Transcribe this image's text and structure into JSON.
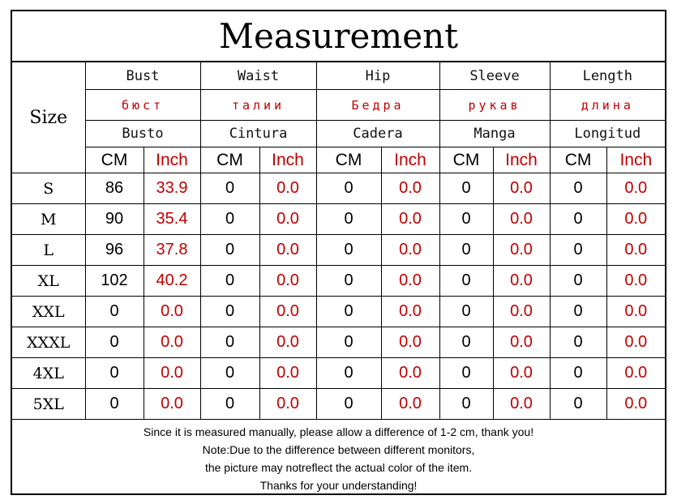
{
  "title": "Measurement",
  "size_header": "Size",
  "columns": [
    {
      "en": "Bust",
      "ru": "бюст",
      "es": "Busto"
    },
    {
      "en": "Waist",
      "ru": "талии",
      "es": "Cintura"
    },
    {
      "en": "Hip",
      "ru": "Бедра",
      "es": "Cadera"
    },
    {
      "en": "Sleeve",
      "ru": "рукав",
      "es": "Manga"
    },
    {
      "en": "Length",
      "ru": "длина",
      "es": "Longitud"
    }
  ],
  "units": {
    "cm": "CM",
    "inch": "Inch"
  },
  "rows": [
    {
      "size": "S",
      "values": [
        [
          "86",
          "33.9"
        ],
        [
          "0",
          "0.0"
        ],
        [
          "0",
          "0.0"
        ],
        [
          "0",
          "0.0"
        ],
        [
          "0",
          "0.0"
        ]
      ]
    },
    {
      "size": "M",
      "values": [
        [
          "90",
          "35.4"
        ],
        [
          "0",
          "0.0"
        ],
        [
          "0",
          "0.0"
        ],
        [
          "0",
          "0.0"
        ],
        [
          "0",
          "0.0"
        ]
      ]
    },
    {
      "size": "L",
      "values": [
        [
          "96",
          "37.8"
        ],
        [
          "0",
          "0.0"
        ],
        [
          "0",
          "0.0"
        ],
        [
          "0",
          "0.0"
        ],
        [
          "0",
          "0.0"
        ]
      ]
    },
    {
      "size": "XL",
      "values": [
        [
          "102",
          "40.2"
        ],
        [
          "0",
          "0.0"
        ],
        [
          "0",
          "0.0"
        ],
        [
          "0",
          "0.0"
        ],
        [
          "0",
          "0.0"
        ]
      ]
    },
    {
      "size": "XXL",
      "values": [
        [
          "0",
          "0.0"
        ],
        [
          "0",
          "0.0"
        ],
        [
          "0",
          "0.0"
        ],
        [
          "0",
          "0.0"
        ],
        [
          "0",
          "0.0"
        ]
      ]
    },
    {
      "size": "XXXL",
      "values": [
        [
          "0",
          "0.0"
        ],
        [
          "0",
          "0.0"
        ],
        [
          "0",
          "0.0"
        ],
        [
          "0",
          "0.0"
        ],
        [
          "0",
          "0.0"
        ]
      ]
    },
    {
      "size": "4XL",
      "values": [
        [
          "0",
          "0.0"
        ],
        [
          "0",
          "0.0"
        ],
        [
          "0",
          "0.0"
        ],
        [
          "0",
          "0.0"
        ],
        [
          "0",
          "0.0"
        ]
      ]
    },
    {
      "size": "5XL",
      "values": [
        [
          "0",
          "0.0"
        ],
        [
          "0",
          "0.0"
        ],
        [
          "0",
          "0.0"
        ],
        [
          "0",
          "0.0"
        ],
        [
          "0",
          "0.0"
        ]
      ]
    }
  ],
  "footer": [
    "Since it is measured manually, please allow a difference of 1-2 cm, thank you!",
    "Note:Due to the difference between different monitors,",
    "the picture may notreflect the actual color of the item.",
    "Thanks for your understanding!"
  ],
  "colors": {
    "accent_red": "#c00000",
    "text": "#000000",
    "border": "#000000"
  }
}
